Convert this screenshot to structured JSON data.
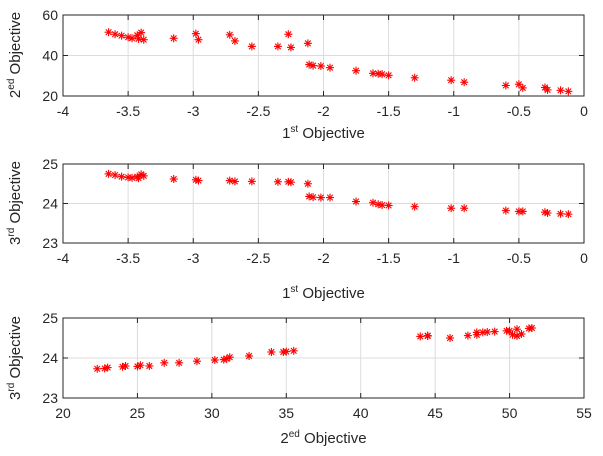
{
  "marker_color": "#ff0000",
  "marker_shape": "asterisk",
  "chart_data": [
    {
      "type": "scatter",
      "x_label": {
        "base": "1",
        "sup": "st",
        "rest": " Objective"
      },
      "y_label": {
        "base": "2",
        "sup": "ed",
        "rest": " Objective"
      },
      "xlim": [
        -4,
        0
      ],
      "ylim": [
        20,
        60
      ],
      "xticks": [
        -4,
        -3.5,
        -3,
        -2.5,
        -2,
        -1.5,
        -1,
        -0.5,
        0
      ],
      "xtick_labels": [
        "-4",
        "-3.5",
        "-3",
        "-2.5",
        "-2",
        "-1.5",
        "-1",
        "-0.5",
        "0"
      ],
      "yticks": [
        20,
        40,
        60
      ],
      "ytick_labels": [
        "20",
        "40",
        "60"
      ],
      "grid": true,
      "points": [
        [
          -3.65,
          51.5
        ],
        [
          -3.6,
          50.5
        ],
        [
          -3.55,
          49.8
        ],
        [
          -3.5,
          49.0
        ],
        [
          -3.47,
          48.5
        ],
        [
          -3.43,
          50.0
        ],
        [
          -3.42,
          48.2
        ],
        [
          -3.4,
          51.3
        ],
        [
          -3.38,
          47.8
        ],
        [
          -3.15,
          48.5
        ],
        [
          -2.98,
          50.8
        ],
        [
          -2.96,
          47.8
        ],
        [
          -2.72,
          50.2
        ],
        [
          -2.68,
          47.2
        ],
        [
          -2.55,
          44.5
        ],
        [
          -2.35,
          44.5
        ],
        [
          -2.27,
          50.5
        ],
        [
          -2.25,
          44.0
        ],
        [
          -2.12,
          46.0
        ],
        [
          -2.11,
          35.5
        ],
        [
          -2.08,
          35.0
        ],
        [
          -2.02,
          34.8
        ],
        [
          -1.95,
          34.0
        ],
        [
          -1.75,
          32.5
        ],
        [
          -1.62,
          31.2
        ],
        [
          -1.58,
          31.0
        ],
        [
          -1.55,
          30.8
        ],
        [
          -1.5,
          30.2
        ],
        [
          -1.3,
          29.0
        ],
        [
          -1.02,
          27.8
        ],
        [
          -0.92,
          26.8
        ],
        [
          -0.6,
          25.2
        ],
        [
          -0.5,
          25.8
        ],
        [
          -0.47,
          24.0
        ],
        [
          -0.3,
          24.2
        ],
        [
          -0.28,
          23.0
        ],
        [
          -0.18,
          22.8
        ],
        [
          -0.12,
          22.3
        ]
      ]
    },
    {
      "type": "scatter",
      "x_label": {
        "base": "1",
        "sup": "st",
        "rest": " Objective"
      },
      "y_label": {
        "base": "3",
        "sup": "rd",
        "rest": " Objective"
      },
      "xlim": [
        -4,
        0
      ],
      "ylim": [
        23,
        25
      ],
      "xticks": [
        -4,
        -3.5,
        -3,
        -2.5,
        -2,
        -1.5,
        -1,
        -0.5,
        0
      ],
      "xtick_labels": [
        "-4",
        "-3.5",
        "-3",
        "-2.5",
        "-2",
        "-1.5",
        "-1",
        "-0.5",
        "0"
      ],
      "yticks": [
        23,
        24,
        25
      ],
      "ytick_labels": [
        "23",
        "24",
        "25"
      ],
      "grid": true,
      "points": [
        [
          -3.65,
          24.75
        ],
        [
          -3.6,
          24.72
        ],
        [
          -3.55,
          24.68
        ],
        [
          -3.5,
          24.66
        ],
        [
          -3.47,
          24.65
        ],
        [
          -3.43,
          24.68
        ],
        [
          -3.42,
          24.64
        ],
        [
          -3.4,
          24.74
        ],
        [
          -3.38,
          24.7
        ],
        [
          -3.15,
          24.62
        ],
        [
          -2.98,
          24.6
        ],
        [
          -2.96,
          24.58
        ],
        [
          -2.72,
          24.58
        ],
        [
          -2.68,
          24.56
        ],
        [
          -2.55,
          24.56
        ],
        [
          -2.35,
          24.55
        ],
        [
          -2.27,
          24.55
        ],
        [
          -2.25,
          24.54
        ],
        [
          -2.12,
          24.5
        ],
        [
          -2.11,
          24.18
        ],
        [
          -2.08,
          24.16
        ],
        [
          -2.02,
          24.15
        ],
        [
          -1.95,
          24.15
        ],
        [
          -1.75,
          24.05
        ],
        [
          -1.62,
          24.02
        ],
        [
          -1.58,
          23.98
        ],
        [
          -1.55,
          23.96
        ],
        [
          -1.5,
          23.95
        ],
        [
          -1.3,
          23.92
        ],
        [
          -1.02,
          23.88
        ],
        [
          -0.92,
          23.88
        ],
        [
          -0.6,
          23.82
        ],
        [
          -0.5,
          23.8
        ],
        [
          -0.47,
          23.8
        ],
        [
          -0.3,
          23.78
        ],
        [
          -0.28,
          23.76
        ],
        [
          -0.18,
          23.74
        ],
        [
          -0.12,
          23.73
        ]
      ]
    },
    {
      "type": "scatter",
      "x_label": {
        "base": "2",
        "sup": "ed",
        "rest": " Objective"
      },
      "y_label": {
        "base": "3",
        "sup": "rd",
        "rest": " Objective"
      },
      "xlim": [
        20,
        55
      ],
      "ylim": [
        23,
        25
      ],
      "xticks": [
        20,
        25,
        30,
        35,
        40,
        45,
        50,
        55
      ],
      "xtick_labels": [
        "20",
        "25",
        "30",
        "35",
        "40",
        "45",
        "50",
        "55"
      ],
      "yticks": [
        23,
        24,
        25
      ],
      "ytick_labels": [
        "23",
        "24",
        "25"
      ],
      "grid": true,
      "points": [
        [
          22.3,
          23.73
        ],
        [
          22.8,
          23.74
        ],
        [
          23.0,
          23.76
        ],
        [
          24.0,
          23.78
        ],
        [
          24.2,
          23.8
        ],
        [
          25.2,
          23.82
        ],
        [
          25.0,
          23.79
        ],
        [
          25.8,
          23.8
        ],
        [
          26.8,
          23.88
        ],
        [
          27.8,
          23.88
        ],
        [
          29.0,
          23.92
        ],
        [
          30.2,
          23.95
        ],
        [
          30.8,
          23.96
        ],
        [
          31.0,
          23.98
        ],
        [
          31.2,
          24.02
        ],
        [
          32.5,
          24.05
        ],
        [
          34.0,
          24.15
        ],
        [
          34.8,
          24.15
        ],
        [
          35.0,
          24.16
        ],
        [
          35.5,
          24.18
        ],
        [
          44.0,
          24.54
        ],
        [
          44.5,
          24.55
        ],
        [
          44.5,
          24.56
        ],
        [
          46.0,
          24.5
        ],
        [
          47.2,
          24.56
        ],
        [
          47.8,
          24.58
        ],
        [
          47.8,
          24.64
        ],
        [
          48.2,
          24.64
        ],
        [
          48.5,
          24.65
        ],
        [
          49.0,
          24.66
        ],
        [
          49.8,
          24.68
        ],
        [
          50.0,
          24.68
        ],
        [
          50.2,
          24.58
        ],
        [
          50.5,
          24.72
        ],
        [
          50.5,
          24.55
        ],
        [
          50.8,
          24.6
        ],
        [
          51.3,
          24.74
        ],
        [
          51.5,
          24.75
        ]
      ]
    }
  ]
}
